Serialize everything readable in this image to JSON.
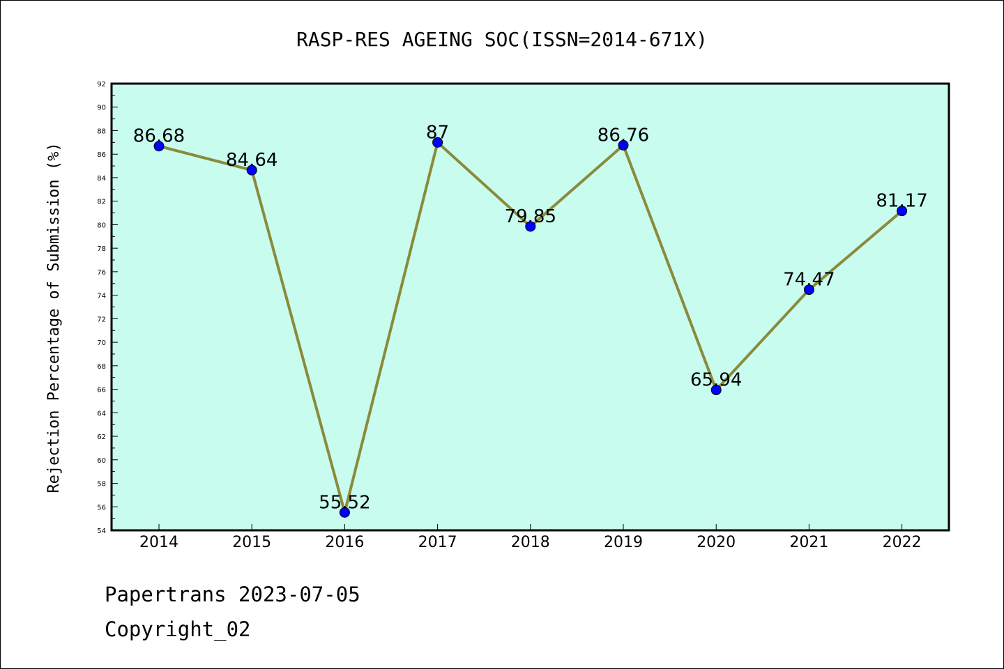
{
  "chart_data": {
    "type": "line",
    "title": "RASP-RES AGEING SOC(ISSN=2014-671X)",
    "xlabel": "",
    "ylabel": "Rejection Percentage of Submission (%)",
    "categories": [
      "2014",
      "2015",
      "2016",
      "2017",
      "2018",
      "2019",
      "2020",
      "2021",
      "2022"
    ],
    "series": [
      {
        "values": [
          86.68,
          84.64,
          55.52,
          87,
          79.85,
          86.76,
          65.94,
          74.47,
          81.17
        ],
        "labels": [
          "86.68",
          "84.64",
          "55.52",
          "87",
          "79.85",
          "86.76",
          "65.94",
          "74.47",
          "81.17"
        ]
      }
    ],
    "ylim": [
      54,
      92
    ],
    "yticks": [
      54,
      56,
      58,
      60,
      62,
      64,
      66,
      68,
      70,
      72,
      74,
      76,
      78,
      80,
      82,
      84,
      86,
      88,
      90,
      92
    ],
    "grid": false,
    "colors": {
      "plot_background": "#c8fcee",
      "line": "#8b8a3c",
      "marker": "#0000ff",
      "marker_edge": "#000000"
    }
  },
  "footer": {
    "line1": "Papertrans 2023-07-05",
    "line2": "Copyright_02"
  }
}
